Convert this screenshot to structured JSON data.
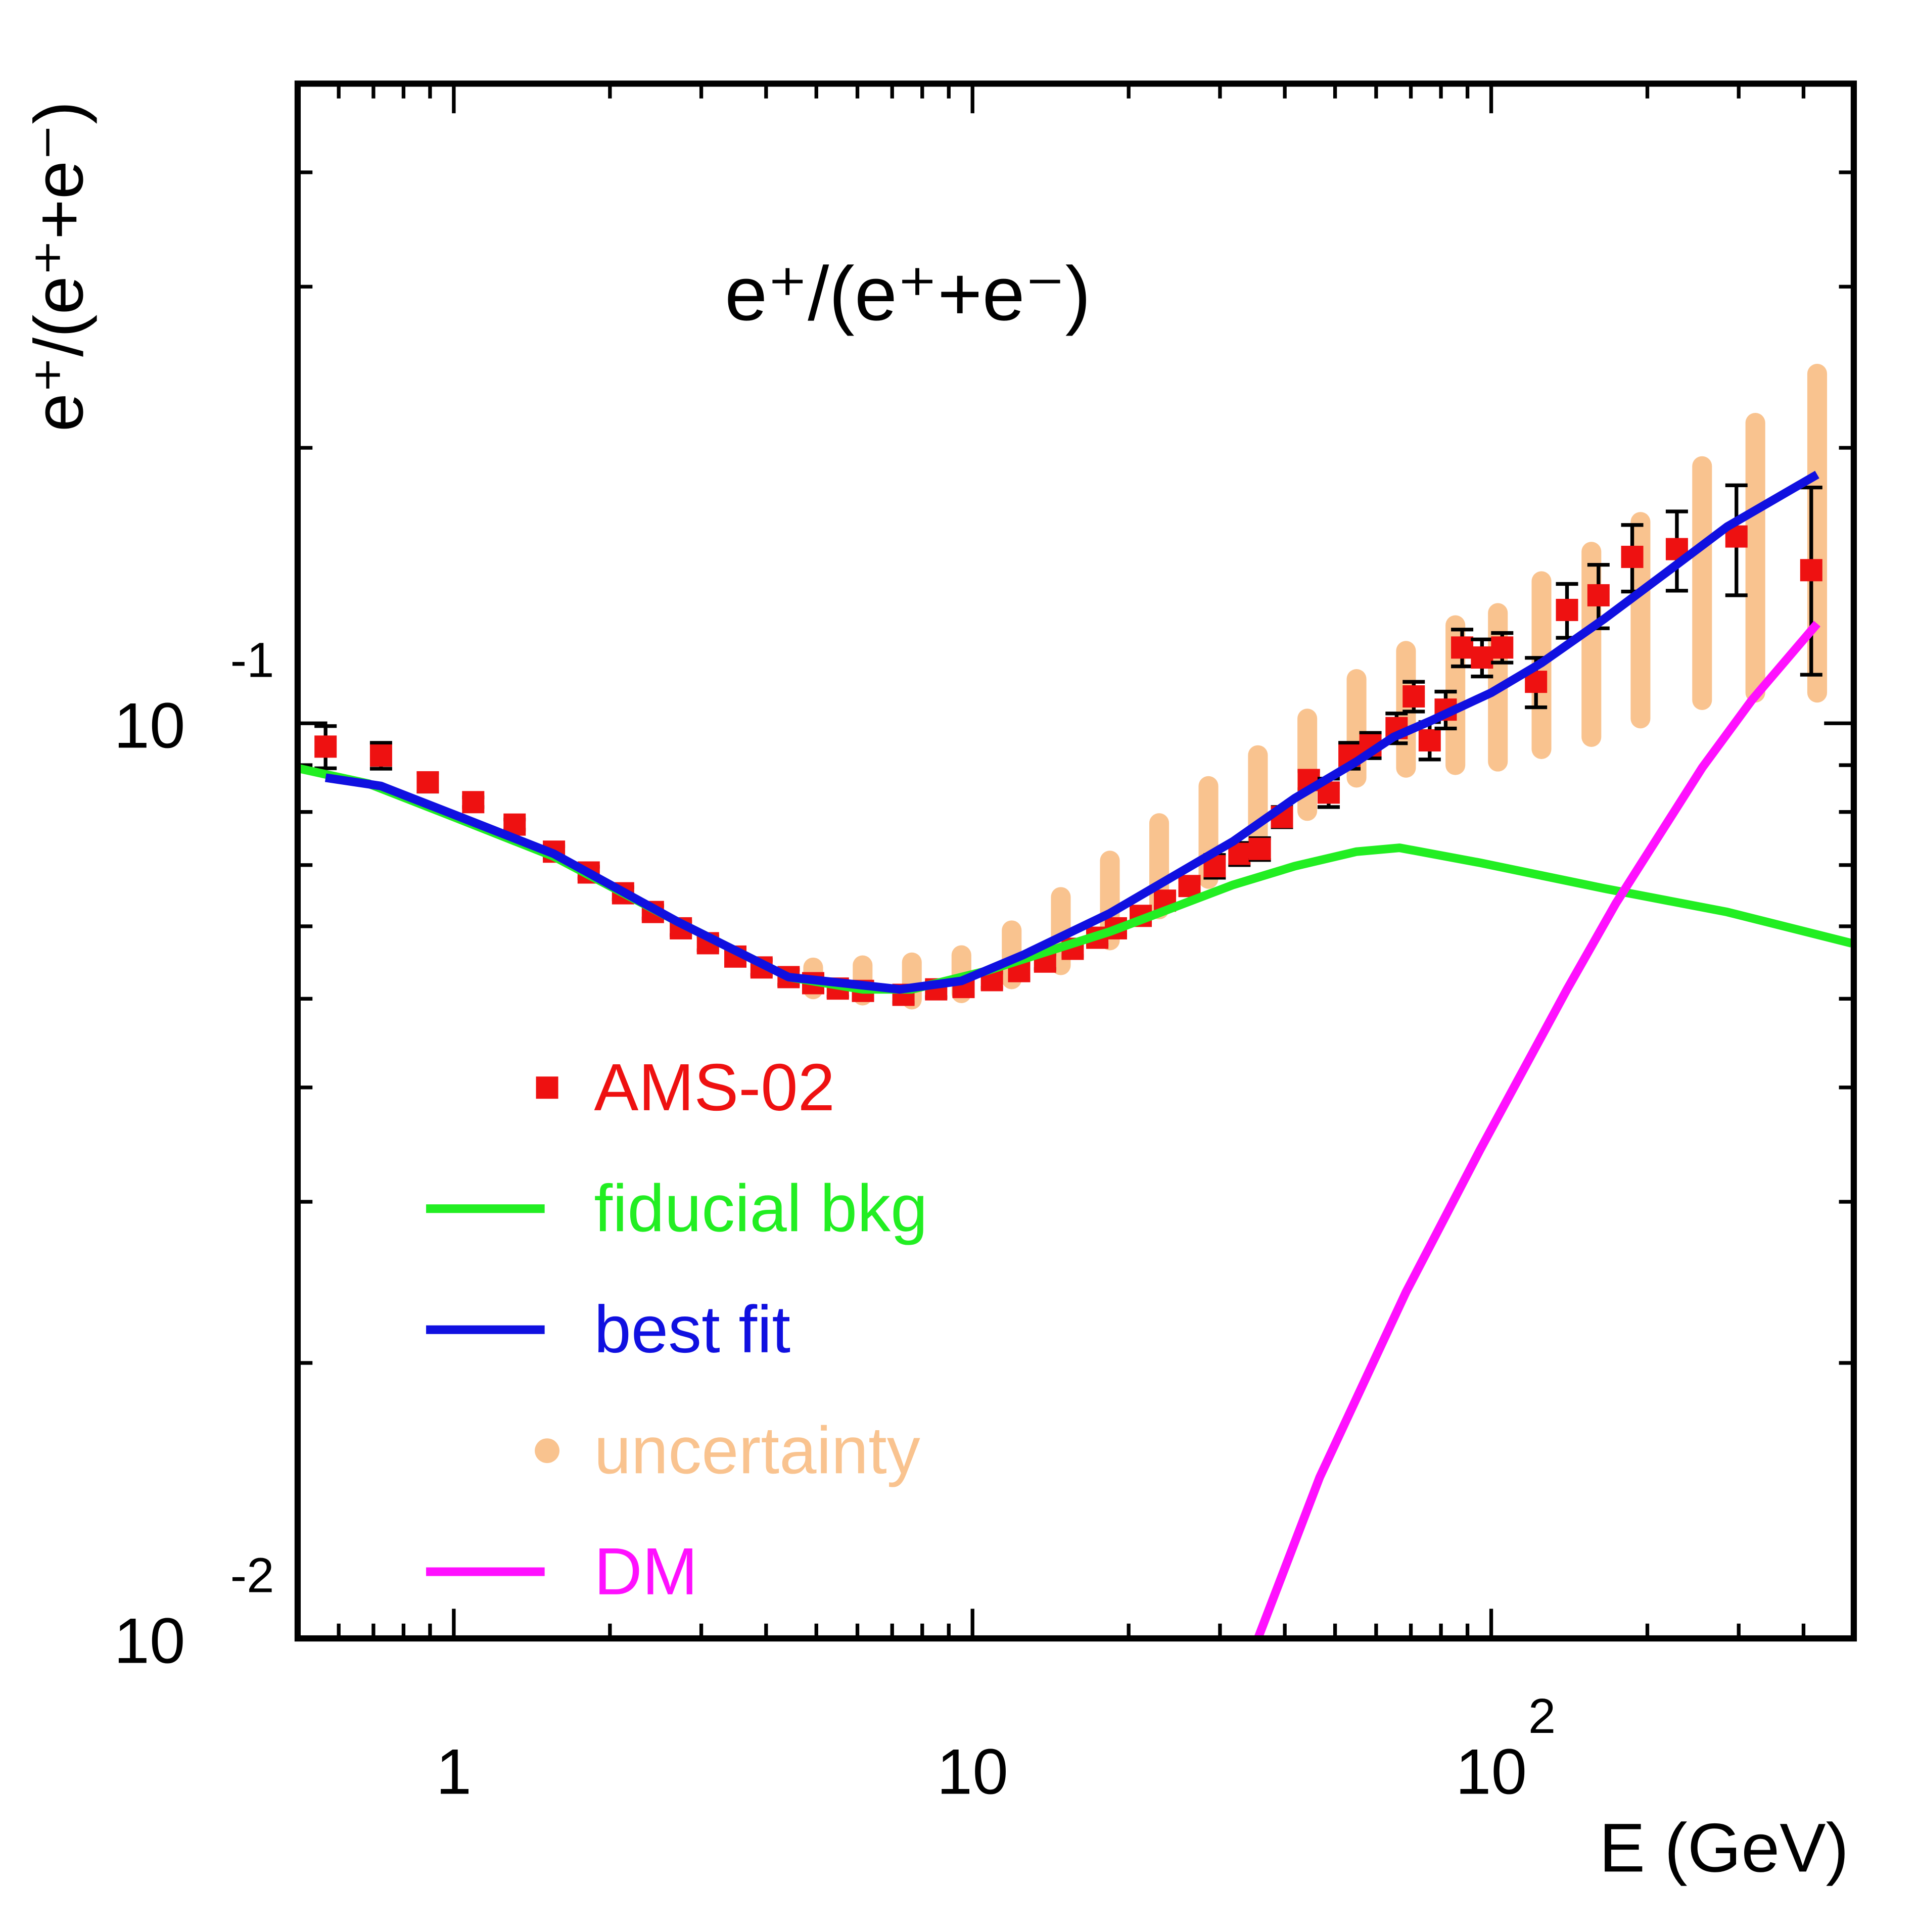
{
  "chart_data": {
    "type": "line",
    "title": "e⁺/(e⁺+e⁻)",
    "x_label": "E (GeV)",
    "y_label": "e⁺/(e⁺+e⁻)",
    "log_x": true,
    "log_y": true,
    "xlim": [
      0.5,
      500
    ],
    "ylim": [
      0.01,
      0.5
    ],
    "xticks": [
      1,
      10,
      {
        "value": 100,
        "label": "10",
        "exponent": "2"
      }
    ],
    "yticks": [
      {
        "value": 0.01,
        "label": "10",
        "exponent": "-2"
      },
      {
        "value": 0.1,
        "label": "10",
        "exponent": "-1"
      }
    ],
    "xminor_ticks": [
      0.6,
      0.7,
      0.8,
      0.9,
      2,
      3,
      4,
      5,
      6,
      7,
      8,
      9,
      20,
      30,
      40,
      50,
      60,
      70,
      80,
      90,
      200,
      300,
      400
    ],
    "yminor_ticks": [
      0.02,
      0.03,
      0.04,
      0.05,
      0.06,
      0.07,
      0.08,
      0.09,
      0.2,
      0.3,
      0.4
    ],
    "legend": "lower left",
    "series": [
      {
        "name": "AMS-02",
        "type": "scatter",
        "color": "#ee1111",
        "x": [
          0.566,
          0.724,
          0.891,
          1.09,
          1.31,
          1.56,
          1.82,
          2.12,
          2.42,
          2.74,
          3.09,
          3.49,
          3.92,
          4.42,
          4.93,
          5.5,
          6.15,
          7.36,
          8.51,
          9.61,
          10.9,
          12.3,
          13.8,
          15.6,
          17.4,
          18.9,
          21.1,
          23.5,
          26.2,
          29.3,
          32.7,
          35.8,
          39.5,
          44.5,
          48.6,
          53.3,
          58.5,
          65.7,
          70.9,
          76.1,
          81.7,
          87.9,
          96.0,
          105,
          122,
          140,
          161,
          187,
          228,
          297,
          414
        ],
        "values": [
          0.0943,
          0.0922,
          0.0862,
          0.082,
          0.0775,
          0.0724,
          0.0687,
          0.0652,
          0.0622,
          0.0597,
          0.0575,
          0.0556,
          0.0541,
          0.0528,
          0.052,
          0.0513,
          0.051,
          0.0505,
          0.0512,
          0.0515,
          0.0524,
          0.0536,
          0.0549,
          0.0567,
          0.0583,
          0.0597,
          0.0616,
          0.064,
          0.0664,
          0.0698,
          0.072,
          0.0729,
          0.079,
          0.0867,
          0.084,
          0.0922,
          0.0946,
          0.0988,
          0.107,
          0.0958,
          0.1035,
          0.121,
          0.118,
          0.121,
          0.111,
          0.133,
          0.138,
          0.152,
          0.155,
          0.16,
          0.147
        ],
        "errors": [
          0.005,
          0.003,
          0.002,
          0.001,
          0.001,
          0.001,
          0.001,
          0.001,
          0.001,
          0.001,
          0.001,
          0.001,
          0.001,
          0.001,
          0.001,
          0.001,
          0.001,
          0.001,
          0.001,
          0.001,
          0.001,
          0.001,
          0.001,
          0.001,
          0.001,
          0.001,
          0.001,
          0.001,
          0.001,
          0.002,
          0.002,
          0.002,
          0.002,
          0.002,
          0.003,
          0.003,
          0.003,
          0.0037,
          0.004,
          0.0045,
          0.0048,
          0.0056,
          0.0055,
          0.0045,
          0.0069,
          0.009,
          0.011,
          0.0127,
          0.0154,
          0.022,
          0.034
        ]
      },
      {
        "name": "fiducial bkg",
        "type": "line",
        "color": "#22ee22",
        "x": [
          0.496,
          0.685,
          1,
          1.56,
          2.7,
          4.42,
          6.14,
          7.64,
          10.6,
          18.4,
          31.8,
          41.8,
          55.0,
          66.6,
          95.2,
          165,
          285,
          495
        ],
        "values": [
          0.0894,
          0.0859,
          0.079,
          0.0715,
          0.0607,
          0.0528,
          0.0512,
          0.0512,
          0.0536,
          0.0592,
          0.0666,
          0.0698,
          0.0724,
          0.0731,
          0.0704,
          0.066,
          0.0622,
          0.0575
        ]
      },
      {
        "name": "best fit",
        "type": "line",
        "color": "#1010e0",
        "x": [
          0.566,
          0.724,
          1,
          1.56,
          2.7,
          4.42,
          7.24,
          9.52,
          12.5,
          18.4,
          31.8,
          41.8,
          55.0,
          64.8,
          76.4,
          100,
          125,
          165,
          217,
          285,
          425
        ],
        "values": [
          0.0872,
          0.0854,
          0.0795,
          0.072,
          0.0607,
          0.0528,
          0.0512,
          0.0523,
          0.0558,
          0.062,
          0.0743,
          0.0828,
          0.0908,
          0.0966,
          0.1006,
          0.108,
          0.1164,
          0.13,
          0.146,
          0.164,
          0.187
        ]
      },
      {
        "name": "uncertainty",
        "type": "band",
        "color": "#f9c38f",
        "x": [
          4.93,
          6.14,
          7.64,
          9.52,
          11.9,
          14.8,
          18.4,
          22.9,
          28.5,
          35.5,
          44.2,
          55.0,
          68.5,
          85.3,
          103,
          125,
          156,
          194,
          255,
          323,
          425
        ],
        "low": [
          0.0512,
          0.0504,
          0.0499,
          0.0507,
          0.0525,
          0.0544,
          0.0579,
          0.0626,
          0.0676,
          0.0731,
          0.0802,
          0.0872,
          0.0894,
          0.09,
          0.0908,
          0.0937,
          0.0966,
          0.1012,
          0.106,
          0.108,
          0.108
        ],
        "high": [
          0.0541,
          0.0544,
          0.0548,
          0.0558,
          0.0594,
          0.0646,
          0.0708,
          0.0778,
          0.0854,
          0.0923,
          0.1012,
          0.1118,
          0.12,
          0.128,
          0.132,
          0.143,
          0.154,
          0.166,
          0.191,
          0.213,
          0.241
        ]
      },
      {
        "name": "DM",
        "type": "line",
        "color": "#ff10ff",
        "x": [
          35.5,
          46.7,
          68.5,
          95.2,
          140,
          174,
          255,
          318,
          425
        ],
        "values": [
          0.01,
          0.015,
          0.0239,
          0.0342,
          0.0512,
          0.0636,
          0.0894,
          0.106,
          0.1285
        ]
      }
    ]
  }
}
